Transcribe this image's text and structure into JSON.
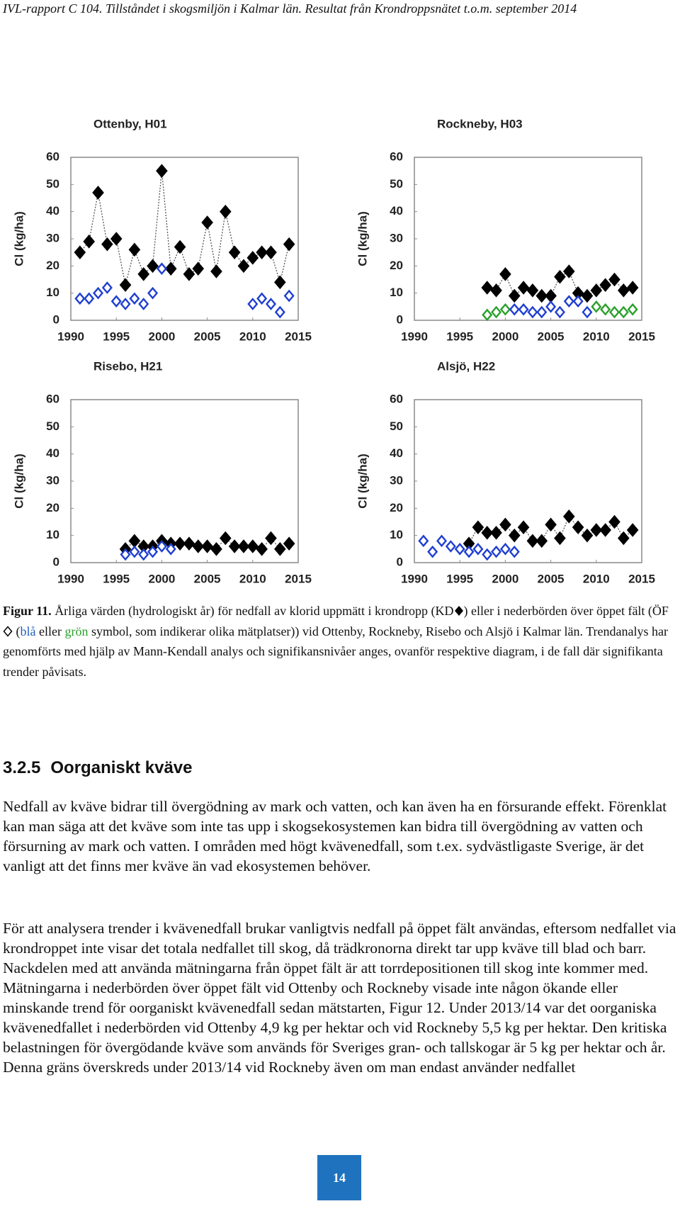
{
  "header": "IVL-rapport C 104. Tillståndet i skogsmiljön i Kalmar län. Resultat från Krondroppsnätet t.o.m. september 2014",
  "chart_data": [
    {
      "type": "scatter",
      "title": "Ottenby, H01",
      "y_label": "Cl (kg/ha)",
      "xlim": [
        1990,
        2015
      ],
      "xticks": [
        1990,
        1995,
        2000,
        2005,
        2010,
        2015
      ],
      "ylim": [
        0,
        60
      ],
      "yticks": [
        0,
        10,
        20,
        30,
        40,
        50,
        60
      ],
      "series": [
        {
          "color": "#000000",
          "marker": "filled",
          "line": "dotted",
          "x": [
            1991,
            1992,
            1993,
            1994,
            1995,
            1996,
            1997,
            1998,
            1999,
            2000,
            2001,
            2002,
            2003,
            2004,
            2005,
            2006,
            2007,
            2008,
            2009,
            2010,
            2011,
            2012,
            2013,
            2014
          ],
          "values": [
            25,
            29,
            47,
            28,
            30,
            13,
            26,
            17,
            20,
            55,
            19,
            27,
            17,
            19,
            36,
            18,
            40,
            25,
            20,
            23,
            25,
            25,
            14,
            28
          ]
        },
        {
          "color": "#1f3fd0",
          "marker": "open",
          "x": [
            1991,
            1992,
            1993,
            1994,
            1995,
            1996,
            1997,
            1998,
            1999,
            2000,
            2010,
            2011,
            2012,
            2013,
            2014
          ],
          "values": [
            8,
            8,
            10,
            12,
            7,
            6,
            8,
            6,
            10,
            19,
            6,
            8,
            6,
            3,
            9
          ]
        }
      ]
    },
    {
      "type": "scatter",
      "title": "Rockneby, H03",
      "y_label": "Cl (kg/ha)",
      "xlim": [
        1990,
        2015
      ],
      "xticks": [
        1990,
        1995,
        2000,
        2005,
        2010,
        2015
      ],
      "ylim": [
        0,
        60
      ],
      "yticks": [
        0,
        10,
        20,
        30,
        40,
        50,
        60
      ],
      "series": [
        {
          "color": "#000000",
          "marker": "filled",
          "line": "dotted",
          "x": [
            1998,
            1999,
            2000,
            2001,
            2002,
            2003,
            2004,
            2005,
            2006,
            2007,
            2008,
            2009,
            2010,
            2011,
            2012,
            2013,
            2014
          ],
          "values": [
            12,
            11,
            17,
            9,
            12,
            11,
            9,
            9,
            16,
            18,
            10,
            9,
            11,
            13,
            15,
            11,
            12
          ]
        },
        {
          "color": "#2aa02a",
          "marker": "open",
          "x": [
            1998,
            1999,
            2000,
            2010,
            2011,
            2012,
            2013,
            2014
          ],
          "values": [
            2,
            3,
            4,
            5,
            4,
            3,
            3,
            4
          ]
        },
        {
          "color": "#1f3fd0",
          "marker": "open",
          "x": [
            2001,
            2002,
            2003,
            2004,
            2005,
            2006,
            2007,
            2008,
            2009
          ],
          "values": [
            4,
            4,
            3,
            3,
            5,
            3,
            7,
            7,
            3
          ]
        }
      ]
    },
    {
      "type": "scatter",
      "title": "Risebo, H21",
      "y_label": "Cl (kg/ha)",
      "xlim": [
        1990,
        2015
      ],
      "xticks": [
        1990,
        1995,
        2000,
        2005,
        2010,
        2015
      ],
      "ylim": [
        0,
        60
      ],
      "yticks": [
        0,
        10,
        20,
        30,
        40,
        50,
        60
      ],
      "series": [
        {
          "color": "#000000",
          "marker": "filled",
          "line": "dotted",
          "x": [
            1996,
            1997,
            1998,
            1999,
            2000,
            2001,
            2002,
            2003,
            2004,
            2005,
            2006,
            2007,
            2008,
            2009,
            2010,
            2011,
            2012,
            2013,
            2014
          ],
          "values": [
            5,
            8,
            6,
            6,
            8,
            7,
            7,
            7,
            6,
            6,
            5,
            9,
            6,
            6,
            6,
            5,
            9,
            5,
            7
          ]
        },
        {
          "color": "#1f3fd0",
          "marker": "open",
          "x": [
            1996,
            1997,
            1998,
            1999,
            2000,
            2001
          ],
          "values": [
            3,
            4,
            3,
            4,
            6,
            5
          ]
        }
      ]
    },
    {
      "type": "scatter",
      "title": "Alsjö, H22",
      "y_label": "Cl (kg/ha)",
      "xlim": [
        1990,
        2015
      ],
      "xticks": [
        1990,
        1995,
        2000,
        2005,
        2010,
        2015
      ],
      "ylim": [
        0,
        60
      ],
      "yticks": [
        0,
        10,
        20,
        30,
        40,
        50,
        60
      ],
      "series": [
        {
          "color": "#000000",
          "marker": "filled",
          "line": "dotted",
          "x": [
            1996,
            1997,
            1998,
            1999,
            2000,
            2001,
            2002,
            2003,
            2004,
            2005,
            2006,
            2007,
            2008,
            2009,
            2010,
            2011,
            2012,
            2013,
            2014
          ],
          "values": [
            7,
            13,
            11,
            11,
            14,
            10,
            13,
            8,
            8,
            14,
            9,
            17,
            13,
            10,
            12,
            12,
            15,
            9,
            12
          ]
        },
        {
          "color": "#1f3fd0",
          "marker": "open",
          "x": [
            1991,
            1992,
            1993,
            1994,
            1995,
            1996,
            1997,
            1998,
            1999,
            2000,
            2001
          ],
          "values": [
            8,
            4,
            8,
            6,
            5,
            4,
            5,
            3,
            4,
            5,
            4
          ]
        }
      ]
    }
  ],
  "caption": {
    "label": "Figur 11.",
    "text_1": "Årliga värden (hydrologiskt år) för nedfall av klorid uppmätt i krondropp (KD",
    "text_2": ") eller i nederbörden över öppet fält (ÖF",
    "text_3": " (",
    "blue_word": "blå",
    "text_4": " eller ",
    "green_word": "grön",
    "text_5": " symbol, som indikerar olika mätplatser)) vid Ottenby, Rockneby, Risebo och Alsjö i Kalmar län. Trendanalys har genomförts med hjälp av Mann-Kendall analys och signifikansnivåer anges, ovanför respektive diagram, i de fall där signifikanta trender påvisats."
  },
  "section": {
    "number": "3.2.5",
    "title": "Oorganiskt kväve"
  },
  "paragraphs": [
    "Nedfall av kväve bidrar till övergödning av mark och vatten, och kan även ha en försurande effekt. Förenklat kan man säga att det kväve som inte tas upp i skogsekosystemen kan bidra till övergödning av vatten och försurning av mark och vatten. I områden med högt kvävenedfall, som t.ex. sydvästligaste Sverige, är det vanligt att det finns mer kväve än vad ekosystemen behöver.",
    "För att analysera trender i kvävenedfall brukar vanligtvis nedfall på öppet fält användas, eftersom nedfallet via krondroppet inte visar det totala nedfallet till skog, då trädkronorna direkt tar upp kväve till blad och barr. Nackdelen med att använda mätningarna från öppet fält är att torrdepositionen till skog inte kommer med. Mätningarna i nederbörden över öppet fält vid Ottenby och Rockneby visade inte någon ökande eller minskande trend för oorganiskt kvävenedfall sedan mätstarten, Figur 12. Under 2013/14 var det oorganiska kvävenedfallet i nederbörden vid Ottenby 4,9 kg per hektar och vid Rockneby 5,5 kg per hektar. Den kritiska belastningen för övergödande kväve som används för Sveriges gran- och tallskogar är 5 kg per hektar och år. Denna gräns överskreds under 2013/14 vid Rockneby även om man endast använder nedfallet"
  ],
  "page_number": "14"
}
